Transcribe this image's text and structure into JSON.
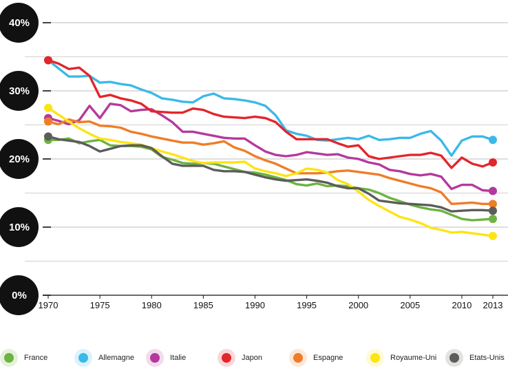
{
  "chart_data": {
    "type": "line",
    "title": "",
    "xlabel": "",
    "ylabel": "",
    "xlim": [
      1970,
      2013
    ],
    "ylim": [
      0,
      40
    ],
    "y_ticks": [
      0,
      10,
      20,
      30,
      40
    ],
    "y_tick_labels": [
      "0%",
      "10%",
      "20%",
      "30%",
      "40%"
    ],
    "x_ticks": [
      1970,
      1975,
      1980,
      1985,
      1990,
      1995,
      2000,
      2005,
      2010,
      2013
    ],
    "x_tick_labels": [
      "1970",
      "1975",
      "1980",
      "1985",
      "1990",
      "1995",
      "2000",
      "2005",
      "2010",
      "2013"
    ],
    "grid": "horizontal",
    "legend_position": "bottom",
    "x": [
      1970,
      1971,
      1972,
      1973,
      1974,
      1975,
      1976,
      1977,
      1978,
      1979,
      1980,
      1981,
      1982,
      1983,
      1984,
      1985,
      1986,
      1987,
      1988,
      1989,
      1990,
      1991,
      1992,
      1993,
      1994,
      1995,
      1996,
      1997,
      1998,
      1999,
      2000,
      2001,
      2002,
      2003,
      2004,
      2005,
      2006,
      2007,
      2008,
      2009,
      2010,
      2011,
      2012,
      2013
    ],
    "series": [
      {
        "name": "France",
        "color": "#6cb33f",
        "values": [
          22.8,
          22.8,
          23.0,
          22.3,
          22.6,
          22.8,
          22.0,
          21.9,
          21.9,
          21.8,
          21.4,
          20.3,
          19.9,
          19.4,
          19.3,
          19.4,
          19.3,
          18.9,
          18.5,
          18.1,
          18.0,
          17.7,
          17.3,
          16.9,
          16.3,
          16.1,
          16.4,
          16.0,
          16.1,
          16.0,
          15.7,
          15.5,
          15.0,
          14.3,
          13.8,
          13.3,
          12.9,
          12.6,
          12.4,
          11.8,
          11.2,
          11.0,
          11.1,
          11.2
        ]
      },
      {
        "name": "Allemagne",
        "color": "#3bb9e8",
        "values": [
          34.5,
          33.3,
          32.1,
          32.1,
          32.2,
          31.2,
          31.3,
          31.0,
          30.8,
          30.2,
          29.7,
          28.9,
          28.7,
          28.4,
          28.3,
          29.2,
          29.6,
          28.9,
          28.8,
          28.6,
          28.3,
          27.8,
          26.4,
          24.2,
          23.7,
          23.4,
          22.8,
          22.7,
          22.9,
          23.1,
          22.9,
          23.4,
          22.8,
          22.9,
          23.1,
          23.1,
          23.7,
          24.1,
          22.7,
          20.5,
          22.7,
          23.3,
          23.3,
          22.8
        ]
      },
      {
        "name": "Italie",
        "color": "#b5399c",
        "values": [
          26.0,
          25.6,
          25.1,
          25.7,
          27.8,
          26.0,
          28.1,
          27.9,
          27.0,
          27.2,
          27.3,
          26.4,
          25.4,
          24.0,
          24.0,
          23.7,
          23.4,
          23.1,
          23.0,
          23.0,
          22.0,
          21.1,
          20.6,
          20.4,
          20.6,
          21.0,
          20.8,
          20.6,
          20.7,
          20.2,
          20.0,
          19.5,
          19.2,
          18.4,
          18.2,
          17.8,
          17.6,
          17.8,
          17.4,
          15.6,
          16.2,
          16.2,
          15.4,
          15.3
        ]
      },
      {
        "name": "Japon",
        "color": "#e2262c",
        "values": [
          34.5,
          34.0,
          33.2,
          33.4,
          32.2,
          29.1,
          29.4,
          28.9,
          28.6,
          28.1,
          27.0,
          26.9,
          26.8,
          26.8,
          27.4,
          27.2,
          26.6,
          26.2,
          26.1,
          26.0,
          26.2,
          26.0,
          25.4,
          24.0,
          22.9,
          22.9,
          22.9,
          22.9,
          22.3,
          21.8,
          22.0,
          20.4,
          20.0,
          20.2,
          20.4,
          20.6,
          20.6,
          20.9,
          20.5,
          18.7,
          20.2,
          19.3,
          18.9,
          19.5
        ]
      },
      {
        "name": "Espagne",
        "color": "#ef7d27",
        "values": [
          25.5,
          25.1,
          25.8,
          25.4,
          25.5,
          24.9,
          24.8,
          24.6,
          24.0,
          23.7,
          23.3,
          23.0,
          22.7,
          22.4,
          22.4,
          22.1,
          22.3,
          22.6,
          21.7,
          21.2,
          20.4,
          19.8,
          19.3,
          18.6,
          17.9,
          17.9,
          17.9,
          18.0,
          18.2,
          18.3,
          18.1,
          17.9,
          17.7,
          17.2,
          16.8,
          16.4,
          16.0,
          15.7,
          15.1,
          13.4,
          13.5,
          13.6,
          13.4,
          13.4
        ]
      },
      {
        "name": "Royaume-Uni",
        "color": "#fde415",
        "values": [
          27.5,
          26.5,
          25.5,
          24.5,
          23.7,
          23.0,
          22.8,
          22.5,
          22.3,
          22.1,
          21.6,
          21.1,
          20.7,
          20.2,
          19.7,
          19.4,
          19.5,
          19.5,
          19.5,
          19.6,
          18.6,
          18.2,
          17.9,
          17.5,
          17.9,
          18.6,
          18.4,
          18.0,
          16.9,
          16.3,
          15.2,
          14.0,
          13.1,
          12.3,
          11.5,
          11.1,
          10.6,
          9.9,
          9.6,
          9.2,
          9.3,
          9.1,
          8.9,
          8.7
        ]
      },
      {
        "name": "Etats-Unis",
        "color": "#5c5c5b",
        "values": [
          23.3,
          22.9,
          22.7,
          22.5,
          21.9,
          21.1,
          21.5,
          21.9,
          22.0,
          22.0,
          21.6,
          20.4,
          19.3,
          19.0,
          19.0,
          19.0,
          18.4,
          18.2,
          18.2,
          18.1,
          17.7,
          17.3,
          17.0,
          16.8,
          16.9,
          17.0,
          16.8,
          16.5,
          16.0,
          15.7,
          15.7,
          14.9,
          13.9,
          13.7,
          13.5,
          13.4,
          13.3,
          13.2,
          12.9,
          12.3,
          12.4,
          12.5,
          12.5,
          12.4
        ]
      }
    ]
  }
}
